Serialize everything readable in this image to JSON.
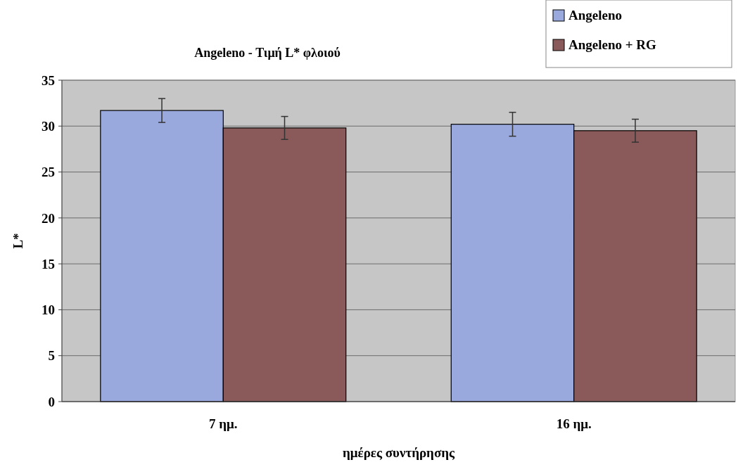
{
  "chart_data": {
    "type": "bar",
    "title": "Angeleno - Τιμή L* φλοιού",
    "xlabel": "ημέρες συντήρησης",
    "ylabel": "L*",
    "categories": [
      "7 ημ.",
      "16 ημ."
    ],
    "series": [
      {
        "name": "Angeleno",
        "color": "#99a9dd",
        "values": [
          31.7,
          30.2
        ],
        "errors": [
          1.3,
          1.3
        ]
      },
      {
        "name": "Angeleno + RG",
        "color": "#8a5a5a",
        "values": [
          29.8,
          29.5
        ],
        "errors": [
          1.25,
          1.25
        ]
      }
    ],
    "ylim": [
      0,
      35
    ],
    "yticks": [
      0,
      5,
      10,
      15,
      20,
      25,
      30,
      35
    ],
    "grid": "y",
    "legend": "top right"
  }
}
